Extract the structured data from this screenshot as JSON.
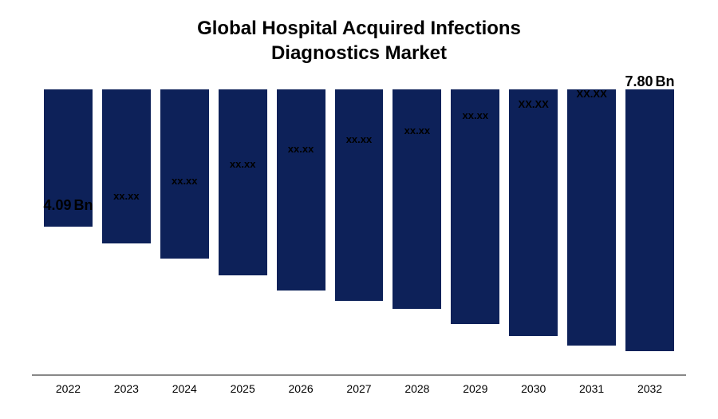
{
  "chart": {
    "type": "bar",
    "title_line1": "Global Hospital Acquired Infections",
    "title_line2": "Diagnostics Market",
    "title_fontsize": 24,
    "title_color": "#000000",
    "background_color": "#ffffff",
    "bar_color": "#0d2159",
    "axis_color": "#888888",
    "ylim": [
      0,
      8.5
    ],
    "bar_width_ratio": 1.0,
    "categories": [
      "2022",
      "2023",
      "2024",
      "2025",
      "2026",
      "2027",
      "2028",
      "2029",
      "2030",
      "2031",
      "2032"
    ],
    "values": [
      4.09,
      4.6,
      5.05,
      5.55,
      6.0,
      6.3,
      6.55,
      7.0,
      7.35,
      7.65,
      7.8
    ],
    "value_labels": [
      "4.09",
      "xx.xx",
      "xx.xx",
      "xx.xx",
      "xx.xx",
      "xx.xx",
      "xx.xx",
      "xx.xx",
      "xx.xx",
      "xx.xx",
      "7.80"
    ],
    "value_suffix_first": "Bn",
    "value_suffix_last": "Bn",
    "label_first_fontsize": 18,
    "label_last_fontsize": 18,
    "label_mid_fontsize": 13,
    "label_uppercase_indices": [
      8,
      9
    ],
    "x_label_fontsize": 14,
    "x_label_color": "#000000"
  }
}
